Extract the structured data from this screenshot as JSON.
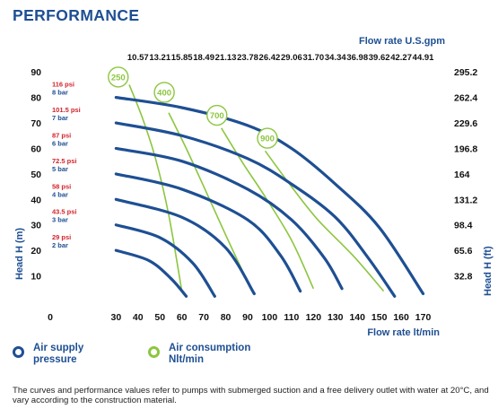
{
  "page_title": "PERFORMANCE",
  "legend": {
    "pressure_label": "Air supply pressure",
    "pressure_line1": "Air supply",
    "pressure_line2": "pressure",
    "pressure_color": "#1e4f93",
    "air_label": "Air consumption Nlt/min",
    "air_line1": "Air consumption",
    "air_line2": "Nlt/min",
    "air_color": "#8cc63f"
  },
  "footnote": "The curves and performance values refer to pumps with submerged suction and a free delivery outlet with water at 20°C, and vary according to the construction material.",
  "chart_data": {
    "type": "line",
    "xlabel": "Flow rate lt/min",
    "ylabel": "Head H (m)",
    "x2label": "Flow rate U.S.gpm",
    "y2label": "Head H (ft)",
    "xlim": [
      0,
      180
    ],
    "ylim": [
      0,
      95
    ],
    "x_ticks": [
      0,
      30,
      40,
      50,
      60,
      70,
      80,
      90,
      100,
      110,
      120,
      130,
      140,
      150,
      160,
      170
    ],
    "x_tick_labels": [
      "0",
      "30",
      "40",
      "50",
      "60",
      "70",
      "80",
      "90",
      "100",
      "110",
      "120",
      "130",
      "140",
      "150",
      "160",
      "170"
    ],
    "y_ticks": [
      10,
      20,
      30,
      40,
      50,
      60,
      70,
      80,
      90
    ],
    "x2_tick_labels": [
      "10.57",
      "13.21",
      "15.85",
      "18.49",
      "21.13",
      "23.78",
      "26.42",
      "29.06",
      "31.70",
      "34.34",
      "36.98",
      "39.62",
      "42.27",
      "44.91"
    ],
    "x2_tick_positions": [
      40,
      50,
      60,
      70,
      80,
      90,
      100,
      110,
      120,
      130,
      140,
      150,
      160,
      170
    ],
    "y2_tick_labels": [
      "295.2",
      "262.4",
      "229.6",
      "196.8",
      "164",
      "131.2",
      "98.4",
      "65.6",
      "32.8"
    ],
    "y2_tick_positions": [
      90,
      80,
      70,
      60,
      50,
      40,
      30,
      20,
      10
    ],
    "grid": false,
    "series": [
      {
        "name": "116 psi 8 bar",
        "psi_label": "116 psi",
        "bar_label": "8 bar",
        "group": "pressure",
        "x": [
          30,
          60,
          90,
          110,
          130,
          150,
          170
        ],
        "y": [
          80,
          76,
          69,
          60,
          46,
          29,
          3
        ]
      },
      {
        "name": "101.5 psi 7 bar",
        "psi_label": "101.5 psi",
        "bar_label": "7 bar",
        "group": "pressure",
        "x": [
          30,
          60,
          90,
          110,
          130,
          145,
          157
        ],
        "y": [
          70,
          65,
          56,
          46,
          33,
          17,
          2
        ]
      },
      {
        "name": "87 psi 6 bar",
        "psi_label": "87 psi",
        "bar_label": "6 bar",
        "group": "pressure",
        "x": [
          30,
          60,
          90,
          110,
          125,
          133
        ],
        "y": [
          60,
          55,
          44,
          32,
          17,
          5
        ]
      },
      {
        "name": "72.5 psi 5 bar",
        "psi_label": "72.5 psi",
        "bar_label": "5 bar",
        "group": "pressure",
        "x": [
          30,
          60,
          90,
          105,
          114
        ],
        "y": [
          50,
          44,
          32,
          18,
          4
        ]
      },
      {
        "name": "58 psi 4 bar",
        "psi_label": "58 psi",
        "bar_label": "4 bar",
        "group": "pressure",
        "x": [
          30,
          60,
          80,
          93
        ],
        "y": [
          40,
          33,
          21,
          3
        ]
      },
      {
        "name": "43.5 psi 3 bar",
        "psi_label": "43.5 psi",
        "bar_label": "3 bar",
        "group": "pressure",
        "x": [
          30,
          50,
          65,
          75
        ],
        "y": [
          30,
          25,
          15,
          2
        ]
      },
      {
        "name": "29 psi 2 bar",
        "psi_label": "29 psi",
        "bar_label": "2 bar",
        "group": "pressure",
        "x": [
          30,
          45,
          55,
          62
        ],
        "y": [
          20,
          16,
          9,
          2
        ]
      },
      {
        "name": "250",
        "group": "air",
        "x": [
          36,
          42,
          48,
          54,
          60
        ],
        "y": [
          85,
          72,
          56,
          34,
          4
        ]
      },
      {
        "name": "400",
        "group": "air",
        "x": [
          54,
          62,
          70,
          80,
          92
        ],
        "y": [
          74,
          60,
          45,
          26,
          4
        ]
      },
      {
        "name": "700",
        "group": "air",
        "x": [
          78,
          88,
          98,
          110,
          120
        ],
        "y": [
          68,
          54,
          41,
          24,
          5
        ]
      },
      {
        "name": "900",
        "group": "air",
        "x": [
          98,
          110,
          122,
          138,
          152
        ],
        "y": [
          59,
          45,
          32,
          18,
          4
        ]
      }
    ],
    "air_label_positions": [
      [
        31,
        88
      ],
      [
        52,
        82
      ],
      [
        76,
        73
      ],
      [
        99,
        64
      ]
    ]
  }
}
